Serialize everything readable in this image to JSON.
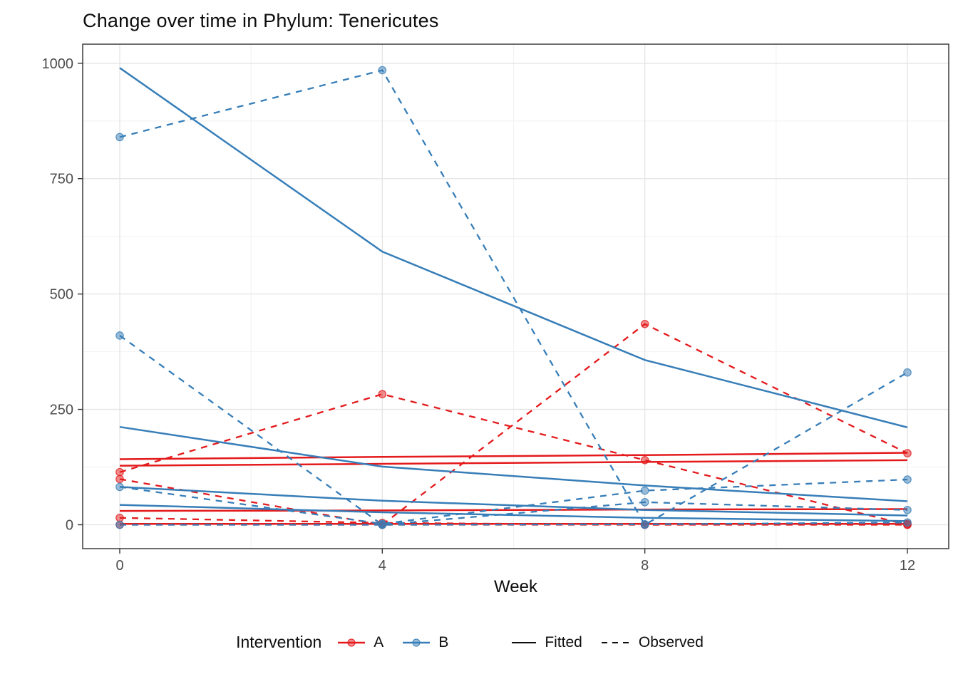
{
  "chart_data": {
    "type": "line",
    "title": "Change over time in Phylum: Tenericutes",
    "xlabel": "Week",
    "ylabel": "",
    "xlim": [
      0,
      12
    ],
    "ylim": [
      0,
      1000
    ],
    "x_ticks": [
      0,
      4,
      8,
      12
    ],
    "y_ticks": [
      0,
      250,
      500,
      750,
      1000
    ],
    "x_minor_ticks": [
      2,
      6,
      10
    ],
    "y_minor_ticks": [
      125,
      375,
      625,
      875
    ],
    "grid": true,
    "legend_position": "bottom",
    "weeks": [
      0,
      4,
      8,
      12
    ],
    "colors": {
      "A": "#E41A1C",
      "B": "#377EB8"
    },
    "legend": {
      "title": "Intervention",
      "groups": [
        {
          "label": "A",
          "color": "#E41A1C"
        },
        {
          "label": "B",
          "color": "#377EB8"
        }
      ],
      "linetypes": [
        {
          "label": "Fitted",
          "pattern": "solid"
        },
        {
          "label": "Observed",
          "pattern": "dashed"
        }
      ]
    },
    "series": [
      {
        "id": "A1",
        "group": "A",
        "fitted": [
          142,
          147,
          151,
          156
        ],
        "observed": [
          114,
          283,
          140,
          0
        ]
      },
      {
        "id": "A2",
        "group": "A",
        "fitted": [
          128,
          132,
          136,
          140
        ],
        "observed": [
          99,
          0,
          435,
          155
        ]
      },
      {
        "id": "A3",
        "group": "A",
        "fitted": [
          30,
          31,
          33,
          34
        ],
        "observed": [
          15,
          4,
          0,
          0
        ]
      },
      {
        "id": "A4",
        "group": "A",
        "fitted": [
          2,
          2,
          2,
          2
        ],
        "observed": [
          0,
          0,
          0,
          2
        ]
      },
      {
        "id": "B1",
        "group": "B",
        "fitted": [
          990,
          592,
          357,
          211
        ],
        "observed": [
          840,
          985,
          0,
          330
        ]
      },
      {
        "id": "B2",
        "group": "B",
        "fitted": [
          212,
          126,
          85,
          51
        ],
        "observed": [
          410,
          0,
          49,
          32
        ]
      },
      {
        "id": "B3",
        "group": "B",
        "fitted": [
          82,
          52,
          32,
          20
        ],
        "observed": [
          82,
          2,
          74,
          98
        ]
      },
      {
        "id": "B4",
        "group": "B",
        "fitted": [
          43,
          27,
          15,
          8
        ],
        "observed": [
          0,
          0,
          1,
          5
        ]
      }
    ]
  }
}
